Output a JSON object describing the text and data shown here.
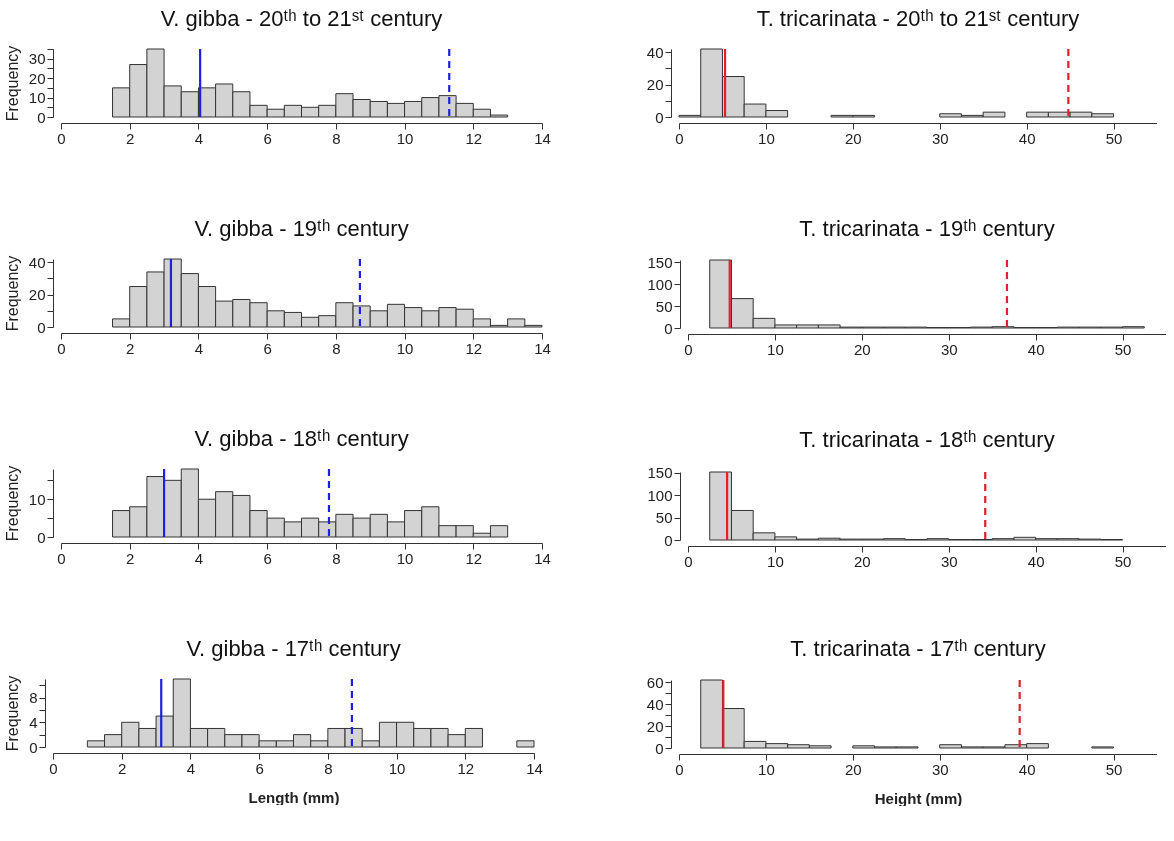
{
  "chart_data": [
    {
      "type": "histogram",
      "title": "V. gibba - 20ᵗʰ to 21ˢᵗ century",
      "ylabel": "Frequency",
      "bins": [
        0,
        0.5,
        1,
        1.5,
        2,
        2.5,
        3,
        3.5,
        4,
        4.5,
        5,
        5.5,
        6,
        6.5,
        7,
        7.5,
        8,
        8.5,
        9,
        9.5,
        10,
        10.5,
        11,
        11.5,
        12,
        12.5,
        13,
        13.5,
        14
      ],
      "values": [
        0,
        0,
        0,
        15,
        27,
        35,
        16,
        13,
        15,
        17,
        13,
        6,
        4,
        6,
        5,
        6,
        12,
        9,
        8,
        7,
        8,
        10,
        11,
        7,
        4,
        1,
        0,
        0
      ],
      "color": "#d3d3d3",
      "xlim": [
        0,
        14
      ],
      "xticks": [
        0,
        2,
        4,
        6,
        8,
        10,
        12,
        14
      ],
      "ylim": [
        0,
        35
      ],
      "yticks": [
        0,
        {
          "value": 5,
          "label": null
        },
        10,
        {
          "value": 15,
          "label": null
        },
        20,
        {
          "value": 25,
          "label": null
        },
        30,
        {
          "value": 35,
          "label": null
        }
      ],
      "ref_lines": [
        {
          "axis": "x",
          "value": 4.05,
          "color": "#1f1fe0",
          "line_style": "solid"
        },
        {
          "axis": "x",
          "value": 11.3,
          "color": "#1f1fe0",
          "line_style": "dashed"
        }
      ]
    },
    {
      "type": "histogram",
      "title": "T. tricarinata - 20ᵗʰ to 21ˢᵗ century",
      "bins": [
        0,
        2.5,
        5,
        7.5,
        10,
        12.5,
        15,
        17.5,
        20,
        22.5,
        25,
        27.5,
        30,
        32.5,
        35,
        37.5,
        40,
        42.5,
        45,
        47.5,
        50,
        52.5
      ],
      "values": [
        1,
        42,
        25,
        8,
        4,
        0,
        0,
        1,
        1,
        0,
        0,
        0,
        2,
        1,
        3,
        0,
        3,
        3,
        3,
        2,
        0
      ],
      "color": "#d3d3d3",
      "xlim": [
        0,
        55
      ],
      "xticks": [
        0,
        10,
        20,
        30,
        40,
        50
      ],
      "ylim": [
        0,
        42
      ],
      "yticks": [
        0,
        {
          "value": 10,
          "label": null
        },
        20,
        {
          "value": 30,
          "label": null
        },
        40
      ],
      "ref_lines": [
        {
          "axis": "x",
          "value": 5.3,
          "color": "#e0202a",
          "line_style": "solid"
        },
        {
          "axis": "x",
          "value": 44.8,
          "color": "#e0202a",
          "line_style": "dashed"
        }
      ]
    },
    {
      "type": "histogram",
      "title": "V. gibba - 19ᵗʰ century",
      "ylabel": "Frequency",
      "bins": [
        0,
        0.5,
        1,
        1.5,
        2,
        2.5,
        3,
        3.5,
        4,
        4.5,
        5,
        5.5,
        6,
        6.5,
        7,
        7.5,
        8,
        8.5,
        9,
        9.5,
        10,
        10.5,
        11,
        11.5,
        12,
        12.5,
        13,
        13.5,
        14
      ],
      "values": [
        0,
        0,
        0,
        5,
        25,
        34,
        42,
        33,
        25,
        16,
        17,
        15,
        10,
        9,
        6,
        7,
        15,
        13,
        10,
        14,
        12,
        10,
        12,
        11,
        5,
        1,
        5,
        1
      ],
      "color": "#d3d3d3",
      "xlim": [
        0,
        14
      ],
      "xticks": [
        0,
        2,
        4,
        6,
        8,
        10,
        12,
        14
      ],
      "ylim": [
        0,
        42
      ],
      "yticks": [
        0,
        {
          "value": 10,
          "label": null
        },
        20,
        {
          "value": 30,
          "label": null
        },
        40
      ],
      "ref_lines": [
        {
          "axis": "x",
          "value": 3.2,
          "color": "#1f1fe0",
          "line_style": "solid"
        },
        {
          "axis": "x",
          "value": 8.7,
          "color": "#1f1fe0",
          "line_style": "dashed"
        }
      ]
    },
    {
      "type": "histogram",
      "title": "T. tricarinata - 19ᵗʰ century",
      "bins": [
        0,
        2.5,
        5,
        7.5,
        10,
        12.5,
        15,
        17.5,
        20,
        22.5,
        25,
        27.5,
        30,
        32.5,
        35,
        37.5,
        40,
        42.5,
        45,
        47.5,
        50,
        52.5
      ],
      "values": [
        0,
        155,
        67,
        22,
        7,
        7,
        7,
        2,
        2,
        2,
        2,
        1,
        1,
        2,
        3,
        1,
        1,
        2,
        2,
        2,
        3
      ],
      "color": "#d3d3d3",
      "xlim": [
        0,
        55
      ],
      "xticks": [
        0,
        10,
        20,
        30,
        40,
        50
      ],
      "ylim": [
        0,
        155
      ],
      "yticks": [
        0,
        50,
        100,
        150
      ],
      "ref_lines": [
        {
          "axis": "x",
          "value": 4.8,
          "color": "#e0202a",
          "line_style": "solid"
        },
        {
          "axis": "x",
          "value": 36.7,
          "color": "#e0202a",
          "line_style": "dashed"
        }
      ]
    },
    {
      "type": "histogram",
      "title": "V. gibba - 18ᵗʰ century",
      "ylabel": "Frequency",
      "bins": [
        0,
        0.5,
        1,
        1.5,
        2,
        2.5,
        3,
        3.5,
        4,
        4.5,
        5,
        5.5,
        6,
        6.5,
        7,
        7.5,
        8,
        8.5,
        9,
        9.5,
        10,
        10.5,
        11,
        11.5,
        12,
        12.5,
        13,
        13.5,
        14
      ],
      "values": [
        0,
        0,
        0,
        7,
        8,
        16,
        15,
        18,
        10,
        12,
        11,
        7,
        5,
        4,
        5,
        4,
        6,
        5,
        6,
        4,
        7,
        8,
        3,
        3,
        1,
        3,
        0,
        0
      ],
      "color": "#d3d3d3",
      "xlim": [
        0,
        14
      ],
      "xticks": [
        0,
        2,
        4,
        6,
        8,
        10,
        12,
        14
      ],
      "ylim": [
        0,
        18
      ],
      "yticks": [
        0,
        {
          "value": 5,
          "label": null
        },
        10,
        {
          "value": 15,
          "label": null
        }
      ],
      "ref_lines": [
        {
          "axis": "x",
          "value": 3.0,
          "color": "#1f1fe0",
          "line_style": "solid"
        },
        {
          "axis": "x",
          "value": 7.8,
          "color": "#1f1fe0",
          "line_style": "dashed"
        }
      ]
    },
    {
      "type": "histogram",
      "title": "T. tricarinata - 18ᵗʰ century",
      "bins": [
        0,
        2.5,
        5,
        7.5,
        10,
        12.5,
        15,
        17.5,
        20,
        22.5,
        25,
        27.5,
        30,
        32.5,
        35,
        37.5,
        40,
        42.5,
        45,
        47.5,
        50,
        52.5
      ],
      "values": [
        0,
        152,
        66,
        16,
        7,
        2,
        4,
        2,
        2,
        3,
        1,
        3,
        1,
        1,
        3,
        6,
        3,
        3,
        2,
        1,
        0
      ],
      "color": "#d3d3d3",
      "xlim": [
        0,
        55
      ],
      "xticks": [
        0,
        10,
        20,
        30,
        40,
        50
      ],
      "ylim": [
        0,
        152
      ],
      "yticks": [
        0,
        50,
        100,
        150
      ],
      "ref_lines": [
        {
          "axis": "x",
          "value": 4.5,
          "color": "#e0202a",
          "line_style": "solid"
        },
        {
          "axis": "x",
          "value": 34.2,
          "color": "#e0202a",
          "line_style": "dashed"
        }
      ]
    },
    {
      "type": "histogram",
      "title": "V. gibba - 17ᵗʰ century",
      "ylabel": "Frequency",
      "xlabel": "Length (mm)",
      "bins": [
        0,
        0.5,
        1,
        1.5,
        2,
        2.5,
        3,
        3.5,
        4,
        4.5,
        5,
        5.5,
        6,
        6.5,
        7,
        7.5,
        8,
        8.5,
        9,
        9.5,
        10,
        10.5,
        11,
        11.5,
        12,
        12.5,
        13,
        13.5,
        14
      ],
      "values": [
        0,
        0,
        1,
        2,
        4,
        3,
        5,
        11,
        3,
        3,
        2,
        2,
        1,
        1,
        2,
        1,
        3,
        3,
        1,
        4,
        4,
        3,
        3,
        2,
        3,
        0,
        0,
        1
      ],
      "color": "#d3d3d3",
      "xlim": [
        0,
        14
      ],
      "xticks": [
        0,
        2,
        4,
        6,
        8,
        10,
        12,
        14
      ],
      "ylim": [
        0,
        11
      ],
      "yticks": [
        0,
        {
          "value": 2,
          "label": null
        },
        4,
        {
          "value": 6,
          "label": null
        },
        8,
        {
          "value": 10,
          "label": null
        }
      ],
      "ref_lines": [
        {
          "axis": "x",
          "value": 3.15,
          "color": "#1f1fe0",
          "line_style": "solid"
        },
        {
          "axis": "x",
          "value": 8.7,
          "color": "#1f1fe0",
          "line_style": "dashed"
        }
      ]
    },
    {
      "type": "histogram",
      "title": "T. tricarinata - 17ᵗʰ century",
      "xlabel": "Height (mm)",
      "bins": [
        0,
        2.5,
        5,
        7.5,
        10,
        12.5,
        15,
        17.5,
        20,
        22.5,
        25,
        27.5,
        30,
        32.5,
        35,
        37.5,
        40,
        42.5,
        45,
        47.5,
        50,
        52.5
      ],
      "values": [
        0,
        62,
        36,
        6,
        4,
        3,
        2,
        0,
        2,
        1,
        1,
        0,
        3,
        1,
        1,
        3,
        4,
        0,
        0,
        1,
        0
      ],
      "color": "#d3d3d3",
      "xlim": [
        0,
        55
      ],
      "xticks": [
        0,
        10,
        20,
        30,
        40,
        50
      ],
      "ylim": [
        0,
        62
      ],
      "yticks": [
        0,
        {
          "value": 10,
          "label": null
        },
        20,
        {
          "value": 30,
          "label": null
        },
        40,
        {
          "value": 50,
          "label": null
        },
        60
      ],
      "ref_lines": [
        {
          "axis": "x",
          "value": 5.1,
          "color": "#e0202a",
          "line_style": "solid"
        },
        {
          "axis": "x",
          "value": 39.2,
          "color": "#e0202a",
          "line_style": "dashed"
        }
      ]
    }
  ]
}
